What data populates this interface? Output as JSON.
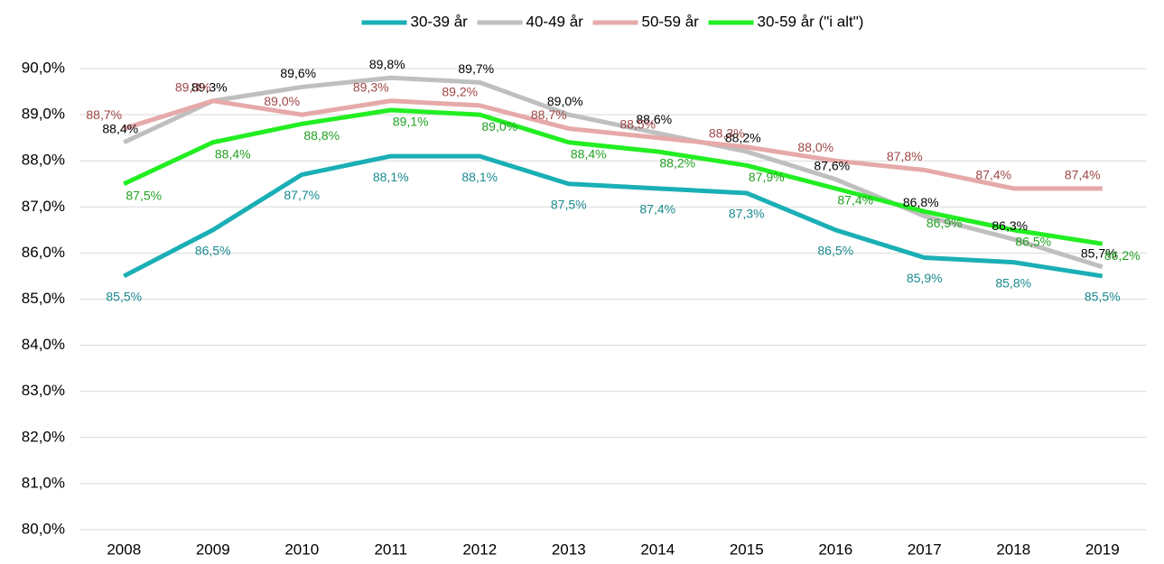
{
  "chart_data": {
    "type": "line",
    "categories": [
      "2008",
      "2009",
      "2010",
      "2011",
      "2012",
      "2013",
      "2014",
      "2015",
      "2016",
      "2017",
      "2018",
      "2019"
    ],
    "series": [
      {
        "name": "30-39 år",
        "color": "#1aafb5",
        "label_color": "#1a8a8f",
        "values": [
          85.5,
          86.5,
          87.7,
          88.1,
          88.1,
          87.5,
          87.4,
          87.3,
          86.5,
          85.9,
          85.8,
          85.5
        ],
        "value_labels": [
          "85,5%",
          "86,5%",
          "87,7%",
          "88,1%",
          "88,1%",
          "87,5%",
          "87,4%",
          "87,3%",
          "86,5%",
          "85,9%",
          "85,8%",
          "85,5%"
        ]
      },
      {
        "name": "40-49 år",
        "color": "#bfbfbf",
        "label_color": "#000000",
        "values": [
          88.4,
          89.3,
          89.6,
          89.8,
          89.7,
          89.0,
          88.6,
          88.2,
          87.6,
          86.8,
          86.3,
          85.7
        ],
        "value_labels": [
          "88,4%",
          "89,3%",
          "89,6%",
          "89,8%",
          "89,7%",
          "89,0%",
          "88,6%",
          "88,2%",
          "87,6%",
          "86,8%",
          "86,3%",
          "85,7%"
        ]
      },
      {
        "name": "50-59 år",
        "color": "#e6a9a9",
        "label_color": "#a04646",
        "values": [
          88.7,
          89.3,
          89.0,
          89.3,
          89.2,
          88.7,
          88.5,
          88.3,
          88.0,
          87.8,
          87.4,
          87.4
        ],
        "value_labels": [
          "88,7%",
          "89,3%",
          "89,0%",
          "89,3%",
          "89,2%",
          "88,7%",
          "88,5%",
          "88,3%",
          "88,0%",
          "87,8%",
          "87,4%",
          "87,4%"
        ]
      },
      {
        "name": "30-59 år (\"i alt\")",
        "color": "#22ee22",
        "label_color": "#22a022",
        "values": [
          87.5,
          88.4,
          88.8,
          89.1,
          89.0,
          88.4,
          88.2,
          87.9,
          87.4,
          86.9,
          86.5,
          86.2
        ],
        "value_labels": [
          "87,5%",
          "88,4%",
          "88,8%",
          "89,1%",
          "89,0%",
          "88,4%",
          "88,2%",
          "87,9%",
          "87,4%",
          "86,9%",
          "86,5%",
          "86,2%"
        ]
      }
    ],
    "ylim": [
      80,
      90
    ],
    "yticks": [
      {
        "value": 80,
        "label": "80,0%"
      },
      {
        "value": 81,
        "label": "81,0%"
      },
      {
        "value": 82,
        "label": "82,0%"
      },
      {
        "value": 83,
        "label": "83,0%"
      },
      {
        "value": 84,
        "label": "84,0%"
      },
      {
        "value": 85,
        "label": "85,0%"
      },
      {
        "value": 86,
        "label": "86,0%"
      },
      {
        "value": 87,
        "label": "87,0%"
      },
      {
        "value": 88,
        "label": "88,0%"
      },
      {
        "value": 89,
        "label": "89,0%"
      },
      {
        "value": 90,
        "label": "90,0%"
      }
    ],
    "grid": true,
    "legend": "top"
  }
}
